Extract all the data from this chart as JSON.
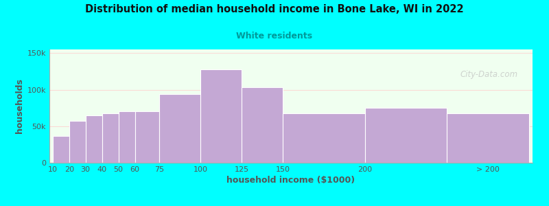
{
  "title": "Distribution of median household income in Bone Lake, WI in 2022",
  "subtitle": "White residents",
  "xlabel": "household income ($1000)",
  "ylabel": "households",
  "background_color": "#00FFFF",
  "plot_bg_color": "#f0fff0",
  "bar_color": "#C4A8D4",
  "bar_edge_color": "#ffffff",
  "title_color": "#111111",
  "subtitle_color": "#009999",
  "axis_label_color": "#555555",
  "tick_label_color": "#555555",
  "watermark": "City-Data.com",
  "values": [
    37000,
    57000,
    65000,
    68000,
    70000,
    70000,
    94000,
    128000,
    103000,
    68000,
    75000,
    68000
  ],
  "bar_lefts": [
    10,
    20,
    30,
    40,
    50,
    60,
    75,
    100,
    125,
    150,
    200,
    250
  ],
  "bar_widths": [
    10,
    10,
    10,
    10,
    10,
    15,
    25,
    25,
    25,
    50,
    50,
    50
  ],
  "ylim": [
    0,
    155000
  ],
  "yticks": [
    0,
    50000,
    100000,
    150000
  ],
  "ytick_labels": [
    "0",
    "50k",
    "100k",
    "150k"
  ],
  "xtick_positions": [
    10,
    20,
    30,
    40,
    50,
    60,
    75,
    100,
    125,
    150,
    200,
    275
  ],
  "xtick_labels": [
    "10",
    "20",
    "30",
    "40",
    "50",
    "60",
    "75",
    "100",
    "125",
    "150",
    "200",
    "> 200"
  ]
}
